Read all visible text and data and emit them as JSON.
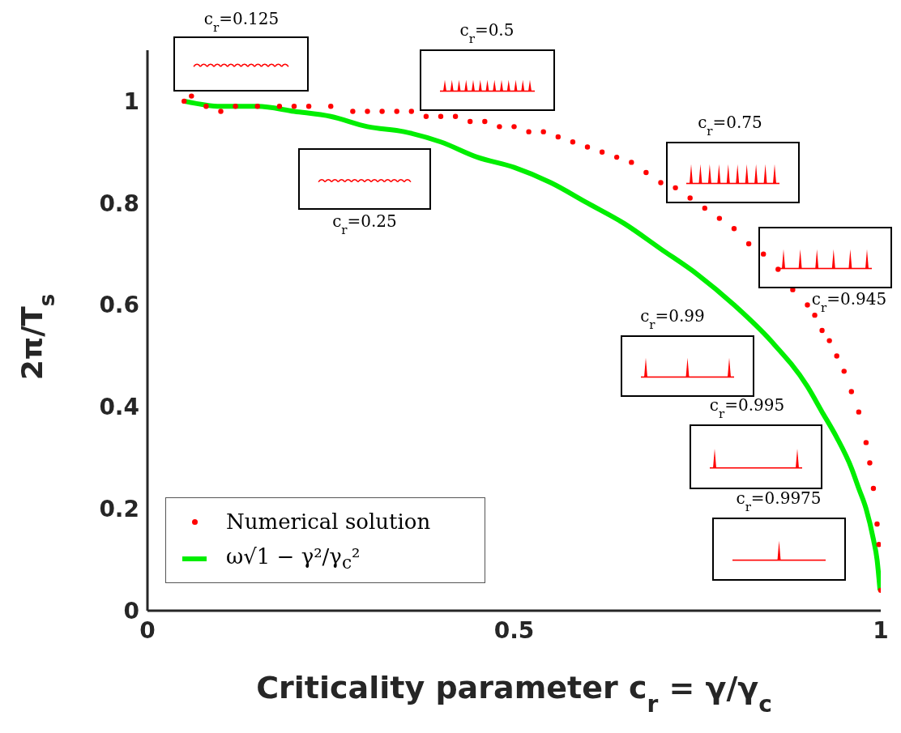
{
  "chart_data": {
    "type": "scatter",
    "xlabel": "Criticality parameter c$_{r}$ = γ/γ$_{c}$",
    "ylabel": "2π/T$_{s}$",
    "xlim": [
      0,
      1
    ],
    "xticks": [
      0,
      0.5,
      1
    ],
    "ylim": [
      0,
      1.1
    ],
    "yticks": [
      0,
      0.2,
      0.4,
      0.6,
      0.8,
      1
    ],
    "grid": false,
    "legend": "bottom left",
    "series": [
      {
        "name": "Numerical solution",
        "marker": "circle",
        "color": "#ff0000",
        "x": [
          0.05,
          0.06,
          0.08,
          0.1,
          0.12,
          0.15,
          0.18,
          0.2,
          0.22,
          0.25,
          0.28,
          0.3,
          0.32,
          0.34,
          0.36,
          0.38,
          0.4,
          0.42,
          0.44,
          0.46,
          0.48,
          0.5,
          0.52,
          0.54,
          0.56,
          0.58,
          0.6,
          0.62,
          0.64,
          0.66,
          0.68,
          0.7,
          0.72,
          0.74,
          0.76,
          0.78,
          0.8,
          0.82,
          0.84,
          0.86,
          0.88,
          0.9,
          0.91,
          0.92,
          0.93,
          0.94,
          0.95,
          0.96,
          0.97,
          0.98,
          0.985,
          0.99,
          0.995,
          0.9975,
          1.0
        ],
        "values": [
          1.0,
          1.01,
          0.99,
          0.98,
          0.99,
          0.99,
          0.99,
          0.99,
          0.99,
          0.99,
          0.98,
          0.98,
          0.98,
          0.98,
          0.98,
          0.97,
          0.97,
          0.97,
          0.96,
          0.96,
          0.95,
          0.95,
          0.94,
          0.94,
          0.93,
          0.92,
          0.91,
          0.9,
          0.89,
          0.88,
          0.86,
          0.84,
          0.83,
          0.81,
          0.79,
          0.77,
          0.75,
          0.72,
          0.7,
          0.67,
          0.63,
          0.6,
          0.58,
          0.55,
          0.53,
          0.5,
          0.47,
          0.43,
          0.39,
          0.33,
          0.29,
          0.24,
          0.17,
          0.13,
          0.04
        ]
      },
      {
        "name": "ω√1 − γ²/γ$_{c}$²",
        "type": "line",
        "marker": "none",
        "color": "#00ee00",
        "x": [
          0.05,
          0.1,
          0.15,
          0.2,
          0.25,
          0.3,
          0.35,
          0.4,
          0.45,
          0.5,
          0.55,
          0.6,
          0.65,
          0.7,
          0.75,
          0.8,
          0.85,
          0.9,
          0.92,
          0.94,
          0.96,
          0.97,
          0.98,
          0.99,
          0.995,
          0.999
        ],
        "values": [
          1.0,
          0.99,
          0.99,
          0.98,
          0.97,
          0.95,
          0.94,
          0.92,
          0.89,
          0.87,
          0.84,
          0.8,
          0.76,
          0.71,
          0.66,
          0.6,
          0.53,
          0.44,
          0.39,
          0.34,
          0.28,
          0.24,
          0.2,
          0.14,
          0.1,
          0.04
        ]
      }
    ],
    "annotations": [
      "c$_{r}$=0.125",
      "c$_{r}$=0.5",
      "c$_{r}$=0.25",
      "c$_{r}$=0.75",
      "c$_{r}$=0.945",
      "c$_{r}$=0.99",
      "c$_{r}$=0.995",
      "c$_{r}$=0.9975"
    ]
  }
}
